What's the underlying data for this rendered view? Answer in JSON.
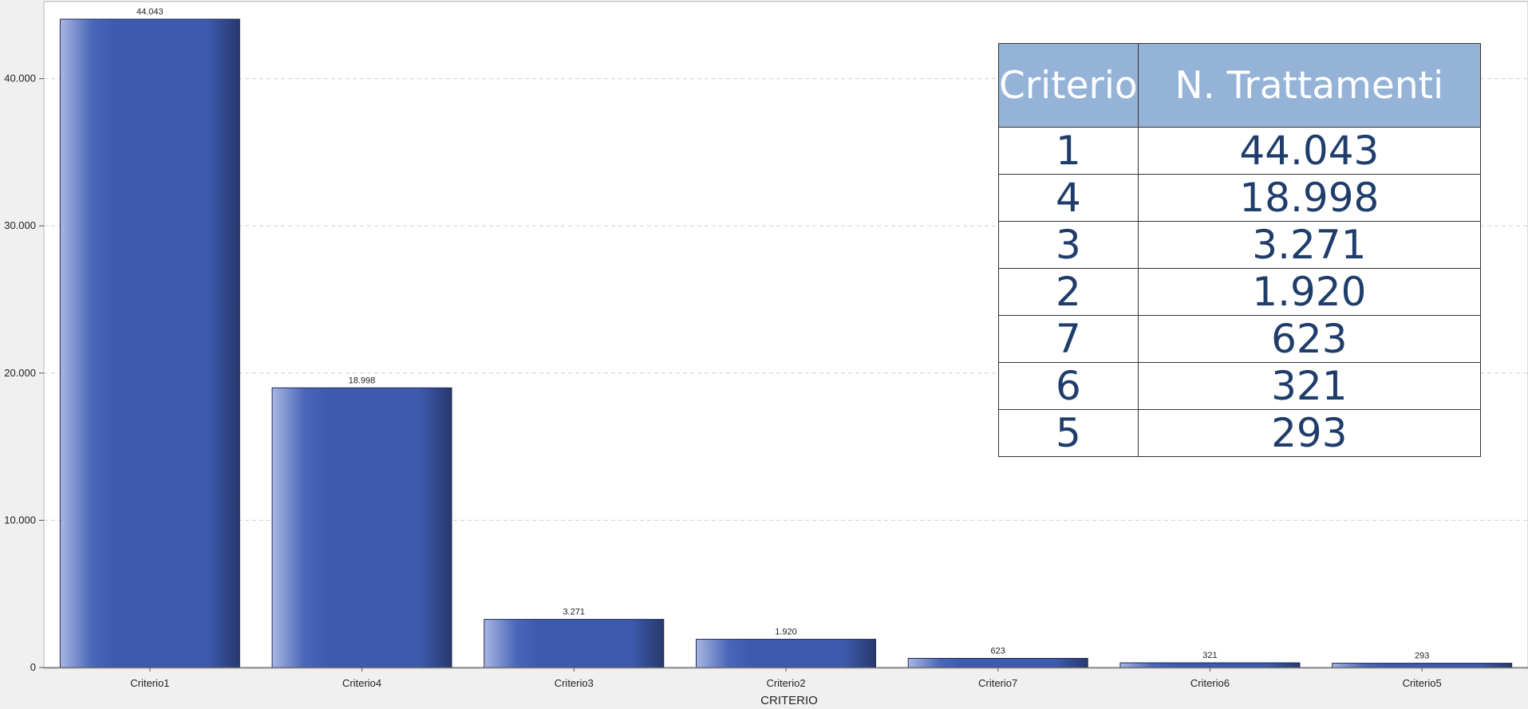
{
  "chart_data": {
    "type": "bar",
    "categories": [
      "Criterio1",
      "Criterio4",
      "Criterio3",
      "Criterio2",
      "Criterio7",
      "Criterio6",
      "Criterio5"
    ],
    "values": [
      44043,
      18998,
      3271,
      1920,
      623,
      321,
      293
    ],
    "value_labels": [
      "44.043",
      "18.998",
      "3.271",
      "1.920",
      "623",
      "321",
      "293"
    ],
    "y_ticks": [
      0,
      10000,
      20000,
      30000,
      40000
    ],
    "y_tick_labels": [
      "0",
      "10.000",
      "20.000",
      "30.000",
      "40.000"
    ],
    "ylim": [
      0,
      44043
    ],
    "xlabel": "CRITERIO",
    "ylabel": "",
    "grid": true,
    "bar_color": "#3d5aad"
  },
  "table": {
    "headers": [
      "Criterio",
      "N. Trattamenti"
    ],
    "rows": [
      [
        "1",
        "44.043"
      ],
      [
        "4",
        "18.998"
      ],
      [
        "3",
        "3.271"
      ],
      [
        "2",
        "1.920"
      ],
      [
        "7",
        "623"
      ],
      [
        "6",
        "321"
      ],
      [
        "5",
        "293"
      ]
    ],
    "header_color": "#95b3d7",
    "text_color": "#1f3d6b"
  }
}
